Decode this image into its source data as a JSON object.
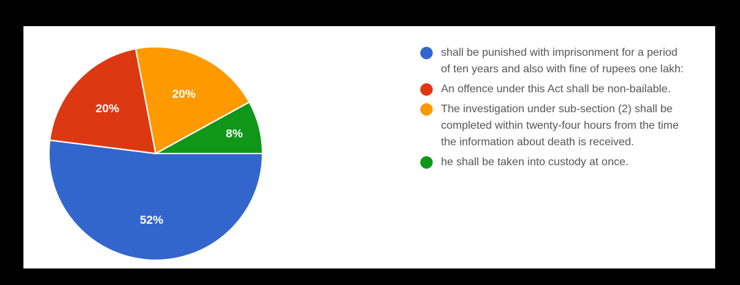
{
  "chart_data": {
    "type": "pie",
    "slices": [
      {
        "label": "shall be punished with imprisonment for a period of ten years and also with fine of rupees one lakh:",
        "value": 52,
        "percent_label": "52%",
        "color": "#3366cc"
      },
      {
        "label": "An offence under this Act shall be non-bailable.",
        "value": 20,
        "percent_label": "20%",
        "color": "#dc3912"
      },
      {
        "label": "The investigation under sub-section (2) shall be completed within twenty-four hours from the time the information about death is received.",
        "value": 20,
        "percent_label": "20%",
        "color": "#ff9900"
      },
      {
        "label": "he shall be taken into custody at once.",
        "value": 8,
        "percent_label": "8%",
        "color": "#109618"
      }
    ],
    "legend_position": "right"
  },
  "legend": {
    "items": [
      {
        "text": "shall be punished with imprisonment for a period of ten years and also with fine of rupees one lakh:",
        "color": "#3366cc"
      },
      {
        "text": "An offence under this Act shall be non-bailable.",
        "color": "#dc3912"
      },
      {
        "text": "The investigation under sub-section (2) shall be completed within twenty-four hours from the time the information about death is received.",
        "color": "#ff9900"
      },
      {
        "text": "he shall be taken into custody at once.",
        "color": "#109618"
      }
    ]
  }
}
